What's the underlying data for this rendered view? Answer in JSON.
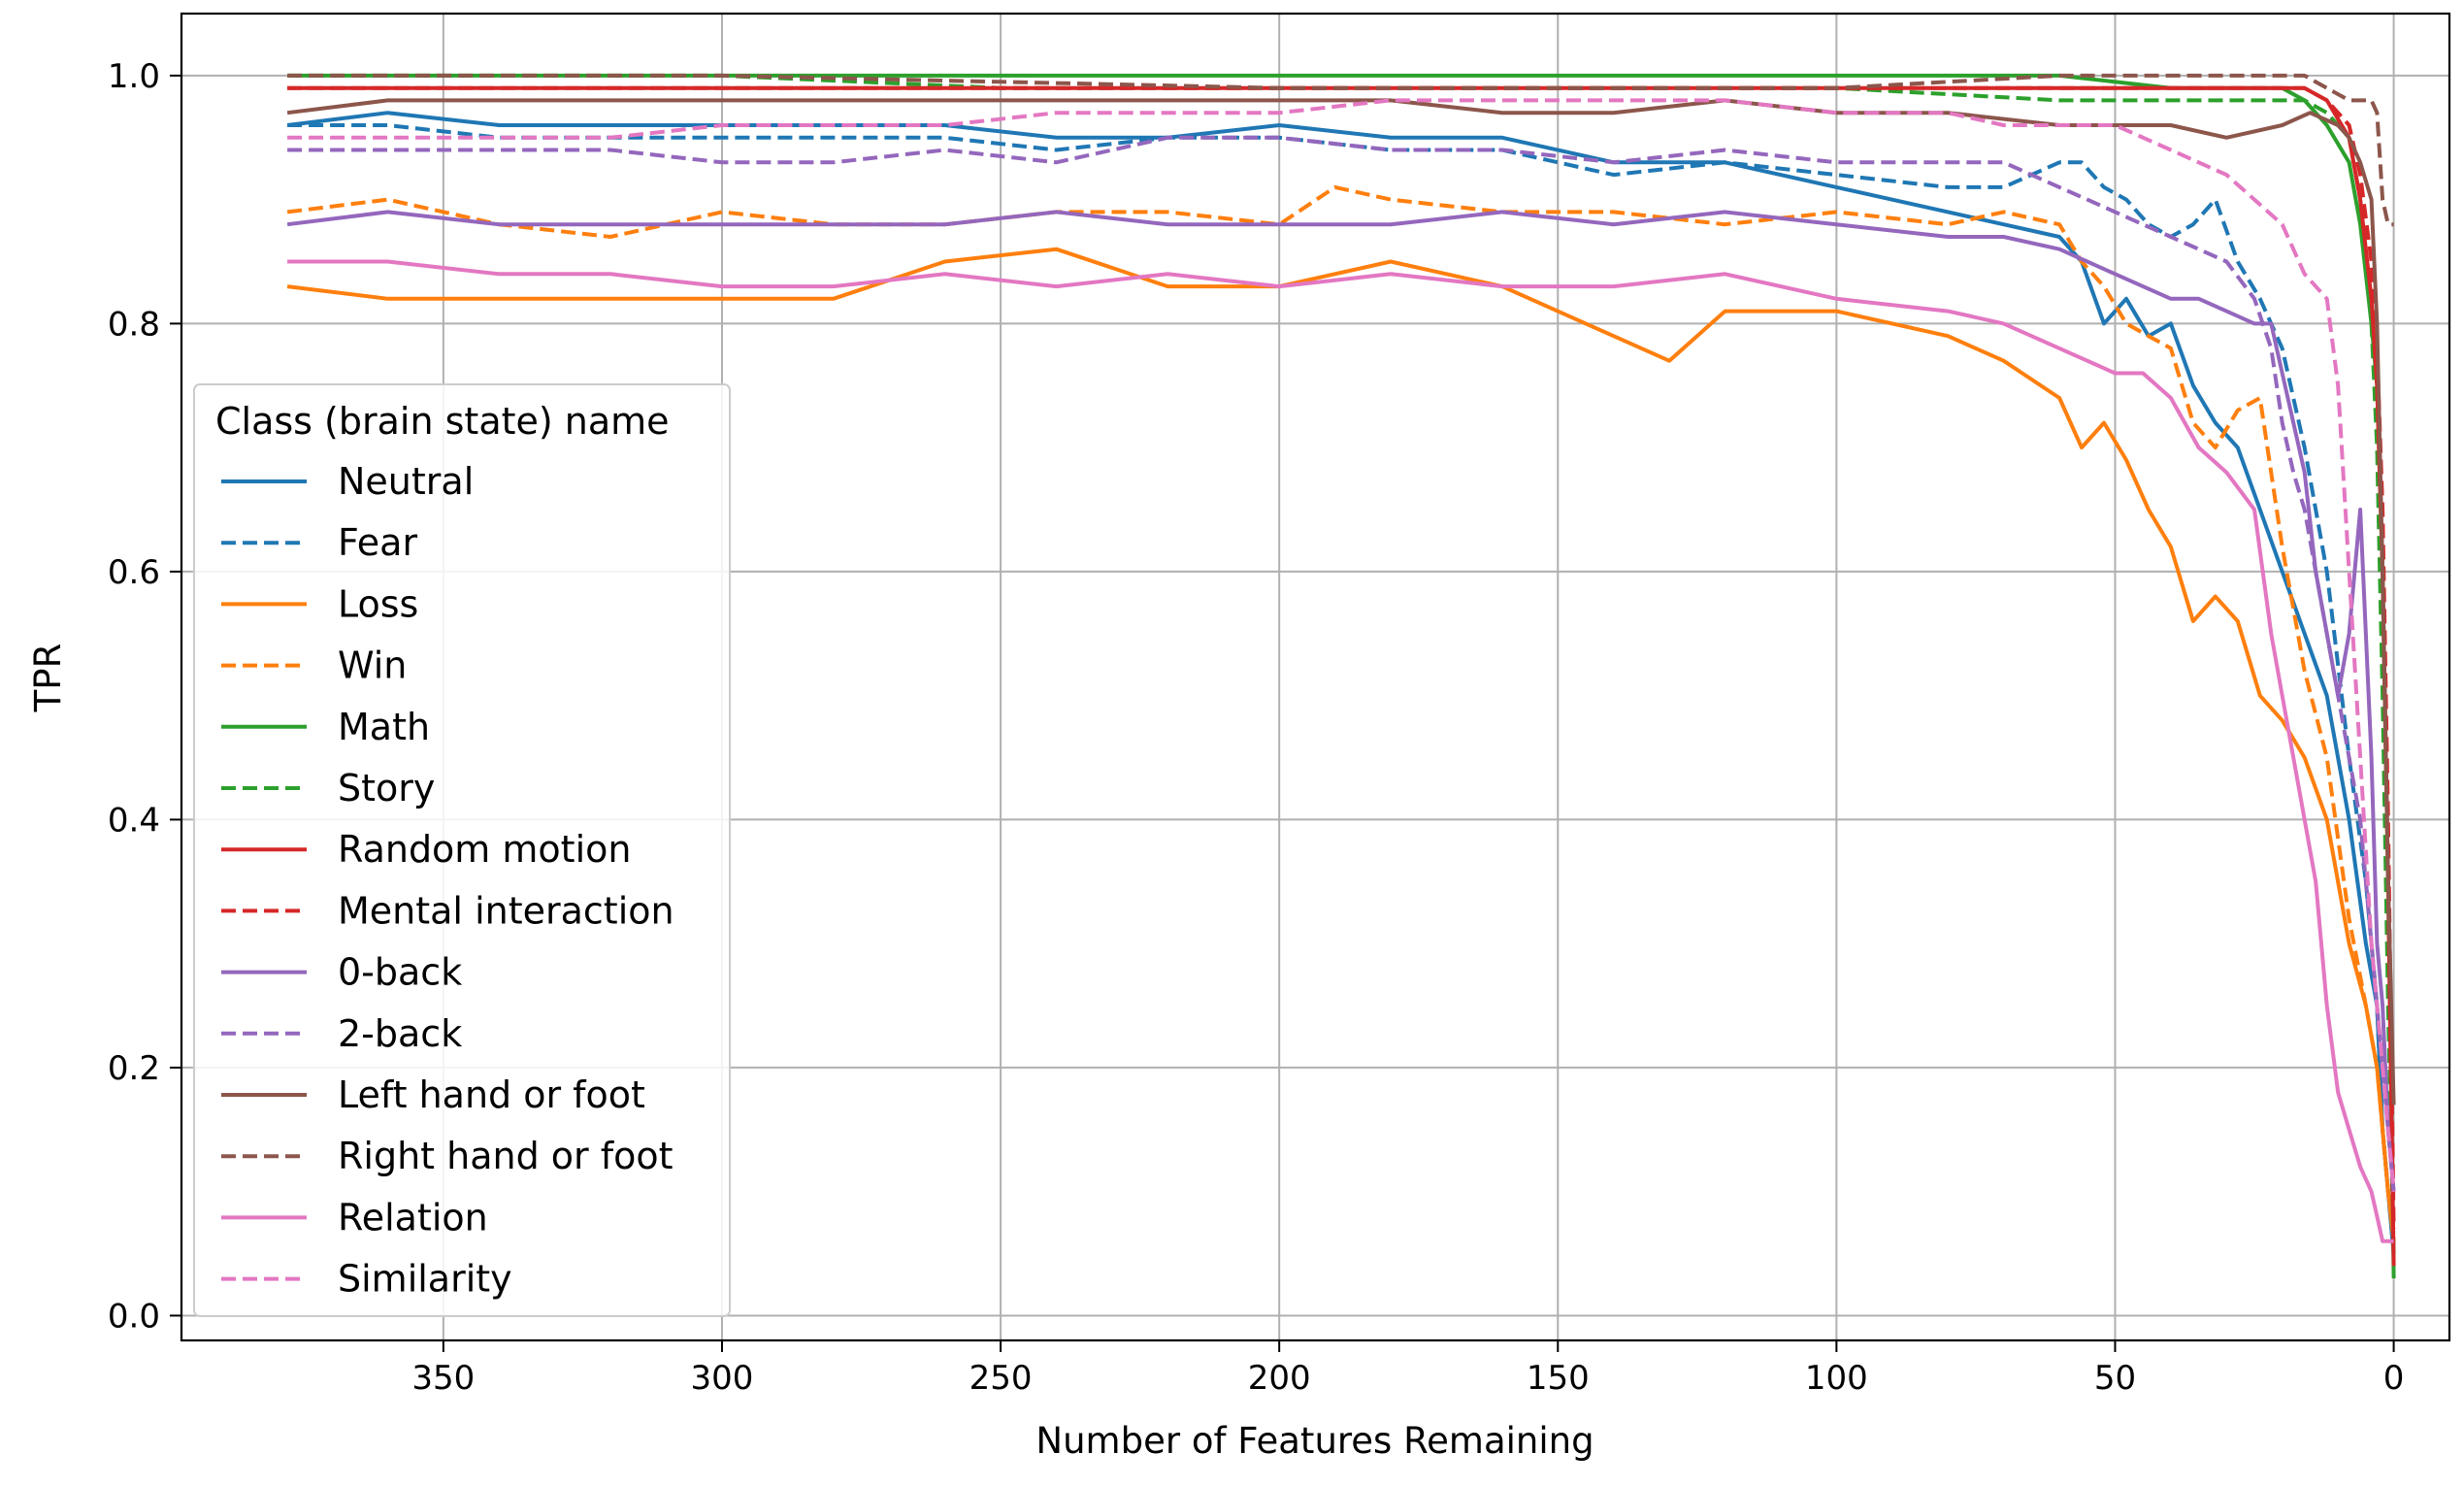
{
  "chart_data": {
    "type": "line",
    "title": "",
    "xlabel": "Number of Features Remaining",
    "ylabel": "TPR",
    "xlim": [
      397,
      -10
    ],
    "ylim": [
      -0.02,
      1.05
    ],
    "x_inverted": true,
    "xticks": [
      350,
      300,
      250,
      200,
      150,
      100,
      50,
      0
    ],
    "yticks": [
      0.0,
      0.2,
      0.4,
      0.6,
      0.8,
      1.0
    ],
    "xtick_labels": [
      "350",
      "300",
      "250",
      "200",
      "150",
      "100",
      "50",
      "0"
    ],
    "ytick_labels": [
      "0.0",
      "0.2",
      "0.4",
      "0.6",
      "0.8",
      "1.0"
    ],
    "grid": true,
    "legend": {
      "title": "Class (brain state) name",
      "placement": "center-left"
    },
    "series": [
      {
        "name": "Neutral",
        "color": "#1f77b4",
        "dash": "solid",
        "x": [
          378,
          360,
          340,
          320,
          300,
          280,
          260,
          240,
          220,
          200,
          180,
          160,
          140,
          120,
          100,
          80,
          70,
          60,
          56,
          52,
          48,
          44,
          40,
          36,
          32,
          28,
          24,
          20,
          16,
          12,
          8,
          5,
          3,
          2,
          1,
          0
        ],
        "y": [
          0.96,
          0.97,
          0.96,
          0.96,
          0.96,
          0.96,
          0.96,
          0.95,
          0.95,
          0.96,
          0.95,
          0.95,
          0.93,
          0.93,
          0.91,
          0.89,
          0.88,
          0.87,
          0.85,
          0.8,
          0.82,
          0.79,
          0.8,
          0.75,
          0.72,
          0.7,
          0.65,
          0.6,
          0.55,
          0.5,
          0.4,
          0.3,
          0.25,
          0.15,
          0.1,
          0.05
        ]
      },
      {
        "name": "Fear",
        "color": "#1f77b4",
        "dash": "dashed",
        "x": [
          378,
          360,
          340,
          320,
          300,
          280,
          260,
          240,
          220,
          200,
          180,
          160,
          140,
          120,
          100,
          80,
          70,
          60,
          56,
          52,
          48,
          44,
          40,
          36,
          32,
          28,
          24,
          20,
          16,
          12,
          8,
          5,
          3,
          2,
          1,
          0
        ],
        "y": [
          0.96,
          0.96,
          0.95,
          0.95,
          0.95,
          0.95,
          0.95,
          0.94,
          0.95,
          0.95,
          0.94,
          0.94,
          0.92,
          0.93,
          0.92,
          0.91,
          0.91,
          0.93,
          0.93,
          0.91,
          0.9,
          0.88,
          0.87,
          0.88,
          0.9,
          0.85,
          0.82,
          0.78,
          0.7,
          0.6,
          0.45,
          0.35,
          0.25,
          0.15,
          0.1,
          0.05
        ]
      },
      {
        "name": "Loss",
        "color": "#ff7f0e",
        "dash": "solid",
        "x": [
          378,
          360,
          340,
          320,
          300,
          280,
          260,
          240,
          220,
          200,
          180,
          160,
          140,
          130,
          120,
          100,
          80,
          70,
          60,
          56,
          52,
          48,
          44,
          40,
          36,
          32,
          28,
          24,
          20,
          16,
          12,
          8,
          5,
          3,
          2,
          1,
          0
        ],
        "y": [
          0.83,
          0.82,
          0.82,
          0.82,
          0.82,
          0.82,
          0.85,
          0.86,
          0.83,
          0.83,
          0.85,
          0.83,
          0.79,
          0.77,
          0.81,
          0.81,
          0.79,
          0.77,
          0.74,
          0.7,
          0.72,
          0.69,
          0.65,
          0.62,
          0.56,
          0.58,
          0.56,
          0.5,
          0.48,
          0.45,
          0.4,
          0.3,
          0.25,
          0.2,
          0.15,
          0.1,
          0.06
        ]
      },
      {
        "name": "Win",
        "color": "#ff7f0e",
        "dash": "dashed",
        "x": [
          378,
          360,
          340,
          320,
          300,
          280,
          260,
          240,
          220,
          200,
          190,
          180,
          160,
          140,
          120,
          100,
          80,
          70,
          60,
          56,
          52,
          48,
          44,
          40,
          36,
          32,
          28,
          24,
          20,
          16,
          12,
          8,
          5,
          3,
          2,
          1,
          0
        ],
        "y": [
          0.89,
          0.9,
          0.88,
          0.87,
          0.89,
          0.88,
          0.88,
          0.89,
          0.89,
          0.88,
          0.91,
          0.9,
          0.89,
          0.89,
          0.88,
          0.89,
          0.88,
          0.89,
          0.88,
          0.85,
          0.83,
          0.8,
          0.79,
          0.78,
          0.72,
          0.7,
          0.73,
          0.74,
          0.62,
          0.52,
          0.45,
          0.32,
          0.25,
          0.2,
          0.15,
          0.1,
          0.06
        ]
      },
      {
        "name": "Math",
        "color": "#2ca02c",
        "dash": "solid",
        "x": [
          378,
          300,
          200,
          100,
          60,
          40,
          20,
          16,
          12,
          8,
          6,
          4,
          3,
          2,
          1,
          0
        ],
        "y": [
          1.0,
          1.0,
          1.0,
          1.0,
          1.0,
          0.99,
          0.99,
          0.98,
          0.96,
          0.93,
          0.88,
          0.8,
          0.75,
          0.6,
          0.35,
          0.03
        ]
      },
      {
        "name": "Story",
        "color": "#2ca02c",
        "dash": "dashed",
        "x": [
          378,
          300,
          250,
          200,
          150,
          100,
          60,
          40,
          20,
          16,
          12,
          8,
          6,
          4,
          3,
          2,
          1,
          0
        ],
        "y": [
          1.0,
          1.0,
          0.99,
          0.99,
          0.99,
          0.99,
          0.98,
          0.98,
          0.98,
          0.98,
          0.97,
          0.95,
          0.9,
          0.8,
          0.7,
          0.5,
          0.25,
          0.05
        ]
      },
      {
        "name": "Random motion",
        "color": "#d62728",
        "dash": "solid",
        "x": [
          378,
          300,
          200,
          100,
          60,
          40,
          20,
          16,
          12,
          8,
          6,
          4,
          3,
          2,
          1,
          0
        ],
        "y": [
          0.99,
          0.99,
          0.99,
          0.99,
          0.99,
          0.99,
          0.99,
          0.99,
          0.98,
          0.95,
          0.9,
          0.82,
          0.75,
          0.6,
          0.35,
          0.04
        ]
      },
      {
        "name": "Mental interaction",
        "color": "#d62728",
        "dash": "dashed",
        "x": [
          378,
          300,
          200,
          100,
          60,
          40,
          20,
          16,
          12,
          8,
          6,
          4,
          3,
          2,
          1,
          0
        ],
        "y": [
          0.99,
          0.99,
          0.99,
          0.99,
          0.99,
          0.99,
          0.99,
          0.99,
          0.98,
          0.96,
          0.92,
          0.85,
          0.78,
          0.65,
          0.4,
          0.07
        ]
      },
      {
        "name": "0-back",
        "color": "#9467bd",
        "dash": "solid",
        "x": [
          378,
          360,
          340,
          320,
          300,
          280,
          260,
          240,
          220,
          200,
          180,
          160,
          140,
          120,
          100,
          80,
          70,
          60,
          55,
          50,
          45,
          40,
          35,
          30,
          25,
          22,
          20,
          18,
          16,
          14,
          12,
          10,
          8,
          6,
          4,
          3,
          2,
          1,
          0
        ],
        "y": [
          0.88,
          0.89,
          0.88,
          0.88,
          0.88,
          0.88,
          0.88,
          0.89,
          0.88,
          0.88,
          0.88,
          0.89,
          0.88,
          0.89,
          0.88,
          0.87,
          0.87,
          0.86,
          0.85,
          0.84,
          0.83,
          0.82,
          0.82,
          0.81,
          0.8,
          0.8,
          0.76,
          0.72,
          0.68,
          0.6,
          0.55,
          0.5,
          0.55,
          0.65,
          0.45,
          0.3,
          0.25,
          0.15,
          0.1
        ]
      },
      {
        "name": "2-back",
        "color": "#9467bd",
        "dash": "dashed",
        "x": [
          378,
          360,
          340,
          320,
          300,
          280,
          260,
          240,
          220,
          200,
          180,
          160,
          140,
          120,
          100,
          80,
          70,
          60,
          55,
          50,
          45,
          40,
          35,
          30,
          25,
          22,
          20,
          18,
          16,
          14,
          12,
          10,
          8,
          6,
          4,
          3,
          2,
          1,
          0
        ],
        "y": [
          0.94,
          0.94,
          0.94,
          0.94,
          0.93,
          0.93,
          0.94,
          0.93,
          0.95,
          0.95,
          0.94,
          0.94,
          0.93,
          0.94,
          0.93,
          0.93,
          0.93,
          0.91,
          0.9,
          0.89,
          0.88,
          0.87,
          0.86,
          0.85,
          0.82,
          0.78,
          0.72,
          0.68,
          0.65,
          0.6,
          0.55,
          0.5,
          0.45,
          0.4,
          0.3,
          0.25,
          0.2,
          0.15,
          0.1
        ]
      },
      {
        "name": "Left hand or foot",
        "color": "#8c564b",
        "dash": "solid",
        "x": [
          378,
          360,
          340,
          320,
          300,
          280,
          260,
          240,
          220,
          200,
          180,
          160,
          140,
          120,
          100,
          80,
          60,
          40,
          30,
          20,
          15,
          10,
          8,
          6,
          4,
          3,
          2,
          1,
          0
        ],
        "y": [
          0.97,
          0.98,
          0.98,
          0.98,
          0.98,
          0.98,
          0.98,
          0.98,
          0.98,
          0.98,
          0.98,
          0.97,
          0.97,
          0.98,
          0.97,
          0.97,
          0.96,
          0.96,
          0.95,
          0.96,
          0.97,
          0.96,
          0.95,
          0.93,
          0.9,
          0.8,
          0.6,
          0.35,
          0.17
        ]
      },
      {
        "name": "Right hand or foot",
        "color": "#8c564b",
        "dash": "dashed",
        "x": [
          378,
          300,
          200,
          100,
          60,
          40,
          20,
          16,
          12,
          8,
          6,
          4,
          3,
          2,
          1,
          0
        ],
        "y": [
          1.0,
          1.0,
          0.99,
          0.99,
          1.0,
          1.0,
          1.0,
          1.0,
          0.99,
          0.98,
          0.98,
          0.98,
          0.97,
          0.9,
          0.88,
          0.88
        ]
      },
      {
        "name": "Relation",
        "color": "#e377c2",
        "dash": "solid",
        "x": [
          378,
          360,
          340,
          320,
          300,
          280,
          260,
          240,
          220,
          200,
          180,
          160,
          140,
          120,
          100,
          80,
          70,
          60,
          55,
          50,
          45,
          40,
          35,
          30,
          25,
          22,
          20,
          18,
          16,
          14,
          12,
          10,
          8,
          6,
          4,
          3,
          2,
          1,
          0
        ],
        "y": [
          0.85,
          0.85,
          0.84,
          0.84,
          0.83,
          0.83,
          0.84,
          0.83,
          0.84,
          0.83,
          0.84,
          0.83,
          0.83,
          0.84,
          0.82,
          0.81,
          0.8,
          0.78,
          0.77,
          0.76,
          0.76,
          0.74,
          0.7,
          0.68,
          0.65,
          0.55,
          0.5,
          0.45,
          0.4,
          0.35,
          0.25,
          0.18,
          0.15,
          0.12,
          0.1,
          0.08,
          0.06,
          0.06,
          0.06
        ]
      },
      {
        "name": "Similarity",
        "color": "#e377c2",
        "dash": "dashed",
        "x": [
          378,
          360,
          340,
          320,
          300,
          280,
          260,
          240,
          220,
          200,
          180,
          160,
          140,
          120,
          100,
          80,
          70,
          60,
          50,
          40,
          30,
          25,
          20,
          16,
          12,
          10,
          8,
          6,
          4,
          3,
          2,
          1,
          0
        ],
        "y": [
          0.95,
          0.95,
          0.95,
          0.95,
          0.96,
          0.96,
          0.96,
          0.97,
          0.97,
          0.97,
          0.98,
          0.98,
          0.98,
          0.98,
          0.97,
          0.97,
          0.96,
          0.96,
          0.96,
          0.94,
          0.92,
          0.9,
          0.88,
          0.84,
          0.82,
          0.75,
          0.6,
          0.45,
          0.3,
          0.25,
          0.2,
          0.15,
          0.1
        ]
      }
    ]
  }
}
